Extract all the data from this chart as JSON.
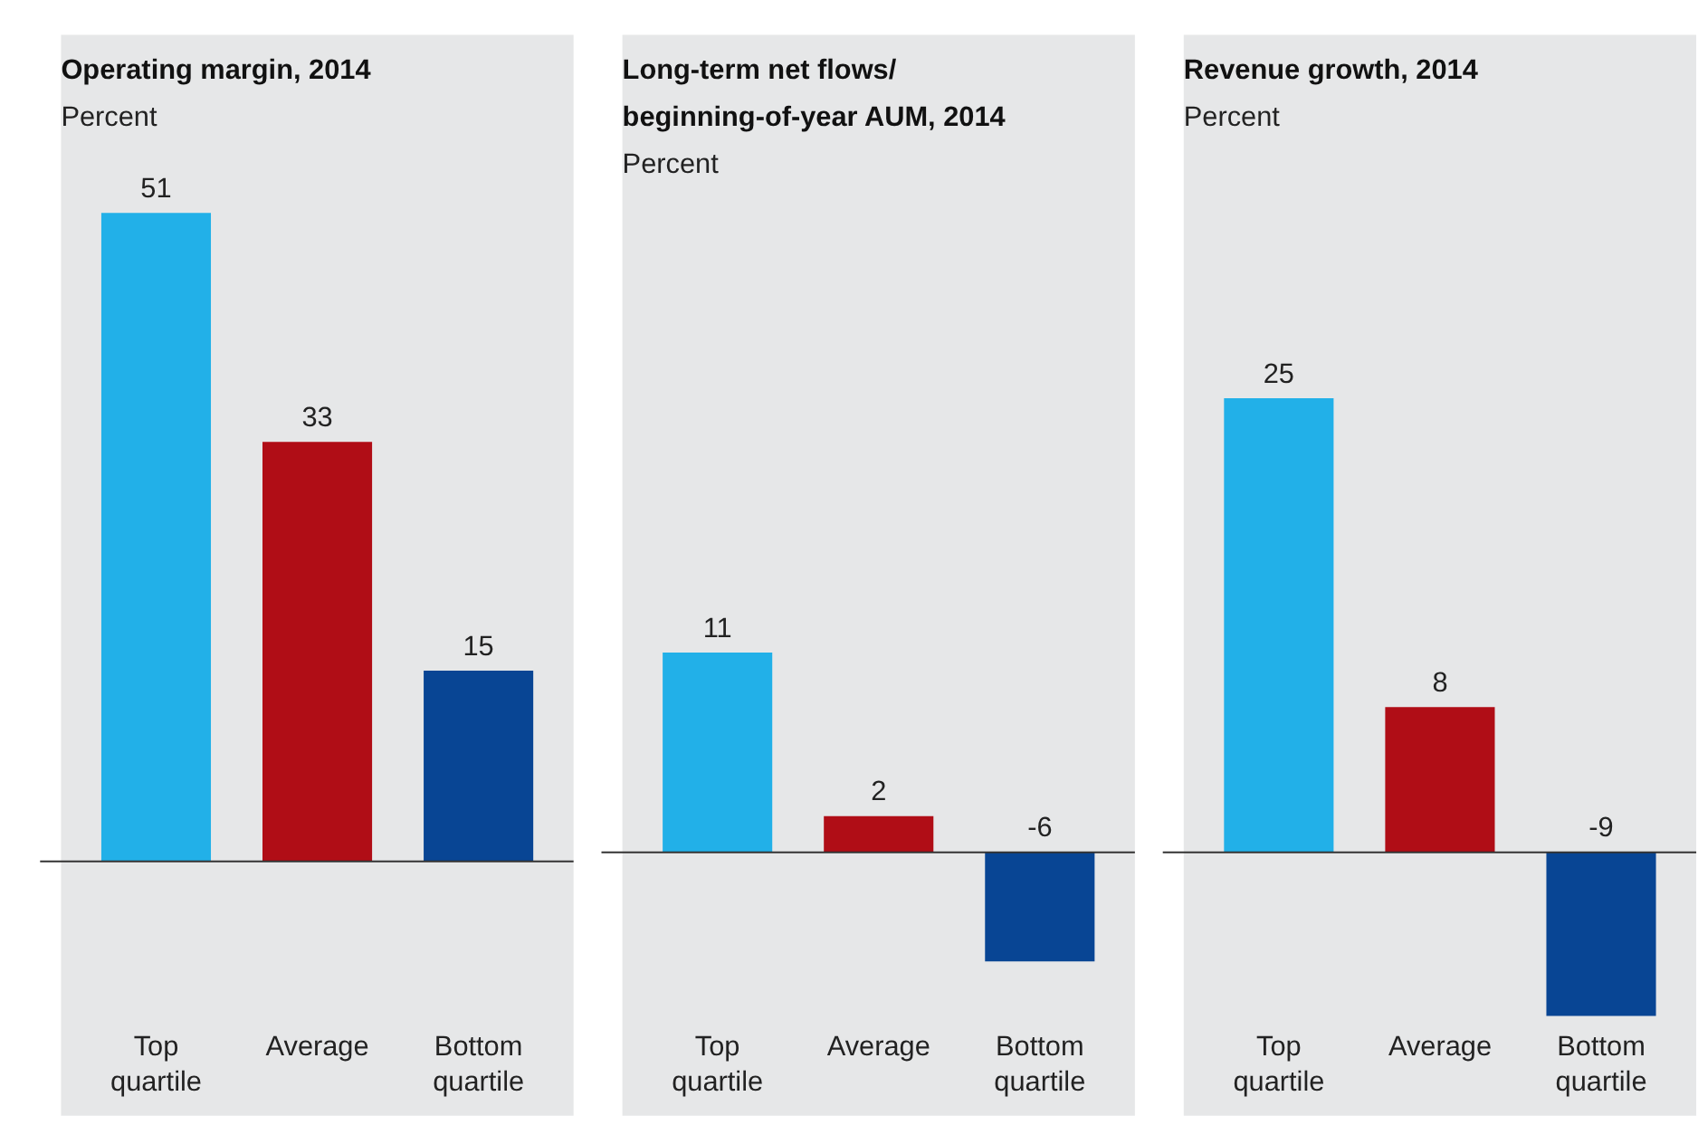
{
  "chart_data": [
    {
      "type": "bar",
      "title": "Operating margin, 2014",
      "subtitle": "Percent",
      "categories": [
        "Top\nquartile",
        "Average",
        "Bottom\nquartile"
      ],
      "colors": [
        "#22b0e8",
        "#b00d16",
        "#084594"
      ],
      "values": [
        51,
        33,
        15
      ],
      "data_labels": true,
      "ylim": [
        -20,
        65
      ],
      "tick_labels": "x",
      "grid": false,
      "ref_lines": [
        {
          "axis": "y",
          "value": 0,
          "color": "#333333"
        }
      ]
    },
    {
      "type": "bar",
      "title": "Long-term net flows/\nbeginning-of-year AUM, 2014",
      "subtitle": "Percent",
      "categories": [
        "Top\nquartile",
        "Average",
        "Bottom\nquartile"
      ],
      "colors": [
        "#22b0e8",
        "#b00d16",
        "#084594"
      ],
      "values": [
        11,
        2,
        -6
      ],
      "data_labels": true,
      "ylim": [
        -14.5,
        45
      ],
      "tick_labels": "x",
      "grid": false,
      "ref_lines": [
        {
          "axis": "y",
          "value": 0,
          "color": "#333333"
        }
      ]
    },
    {
      "type": "bar",
      "title": "Revenue growth, 2014",
      "subtitle": "Percent",
      "categories": [
        "Top\nquartile",
        "Average",
        "Bottom\nquartile"
      ],
      "colors": [
        "#22b0e8",
        "#b00d16",
        "#084594"
      ],
      "values": [
        25,
        8,
        -9
      ],
      "data_labels": true,
      "ylim": [
        -14.5,
        45
      ],
      "tick_labels": "x",
      "grid": false,
      "ref_lines": [
        {
          "axis": "y",
          "value": 0,
          "color": "#333333"
        }
      ]
    }
  ]
}
